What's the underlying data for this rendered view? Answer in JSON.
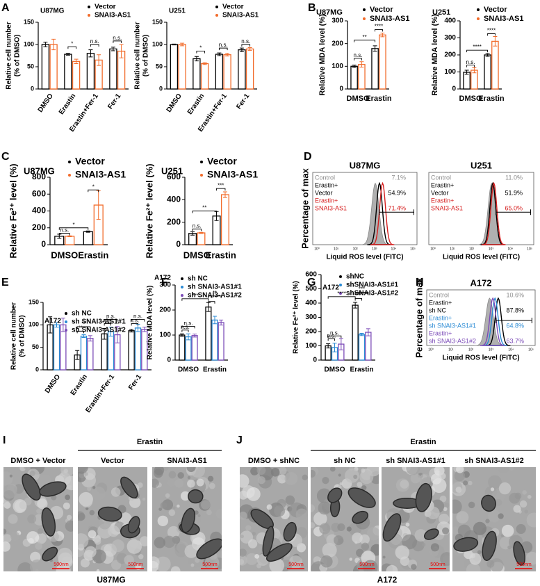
{
  "panel_labels": [
    "A",
    "B",
    "C",
    "D",
    "E",
    "F",
    "G",
    "H",
    "I",
    "J"
  ],
  "chart_data": [
    {
      "type": "bar",
      "title": "U87MG",
      "ylabel": [
        "Relative cell number",
        "(% of DMSO)"
      ],
      "categories": [
        "DMSO",
        "Erastin",
        "Erastin+Fer-1",
        "Fer-1"
      ],
      "series": [
        {
          "name": "Vector",
          "color": "#000000",
          "values": [
            100,
            78,
            80,
            90
          ],
          "errors": [
            5,
            2,
            8,
            4
          ]
        },
        {
          "name": "SNAI3-AS1",
          "color": "#f26b2a",
          "values": [
            100,
            62,
            65,
            85
          ],
          "errors": [
            12,
            5,
            12,
            15
          ]
        }
      ],
      "ylim": [
        0,
        150
      ],
      "yticks": [
        0,
        50,
        100,
        150
      ],
      "annotations": [
        "*",
        "n.s.",
        "n.s."
      ]
    },
    {
      "type": "bar",
      "title": "U251",
      "ylabel": [
        "Relative cell number",
        "(% of DMSO)"
      ],
      "categories": [
        "DMSO",
        "Erastin",
        "Erastin+Fer-1",
        "Fer-1"
      ],
      "series": [
        {
          "name": "Vector",
          "color": "#000000",
          "values": [
            100,
            68,
            78,
            88
          ],
          "errors": [
            1,
            5,
            3,
            4
          ]
        },
        {
          "name": "SNAI3-AS1",
          "color": "#f26b2a",
          "values": [
            100,
            57,
            77,
            90
          ],
          "errors": [
            3,
            2,
            3,
            3
          ]
        }
      ],
      "ylim": [
        0,
        150
      ],
      "yticks": [
        0,
        50,
        100,
        150
      ],
      "annotations": [
        "*",
        "n.s.",
        "n.s."
      ]
    },
    {
      "type": "bar",
      "title": "U87MG",
      "ylabel": [
        "Relative MDA level (%)"
      ],
      "categories": [
        "DMSO",
        "Erastin"
      ],
      "series": [
        {
          "name": "Vector",
          "color": "#000000",
          "values": [
            100,
            178
          ],
          "errors": [
            5,
            12
          ]
        },
        {
          "name": "SNAI3-AS1",
          "color": "#f26b2a",
          "values": [
            108,
            238
          ],
          "errors": [
            12,
            8
          ]
        }
      ],
      "ylim": [
        0,
        300
      ],
      "yticks": [
        0,
        100,
        200,
        300
      ],
      "annotations": [
        "n.s.",
        "**",
        "****"
      ]
    },
    {
      "type": "bar",
      "title": "U251",
      "ylabel": [
        "Relative MDA level (%)"
      ],
      "categories": [
        "DMSO",
        "Erastin"
      ],
      "series": [
        {
          "name": "Vector",
          "color": "#000000",
          "values": [
            98,
            200
          ],
          "errors": [
            12,
            8
          ]
        },
        {
          "name": "SNAI3-AS1",
          "color": "#f26b2a",
          "values": [
            110,
            280
          ],
          "errors": [
            15,
            28
          ]
        }
      ],
      "ylim": [
        0,
        400
      ],
      "yticks": [
        0,
        100,
        200,
        300,
        400
      ],
      "annotations": [
        "n.s.",
        "****",
        "****"
      ]
    },
    {
      "type": "bar",
      "title": "U87MG",
      "ylabel": [
        "Relative Fe²⁺ level (%)"
      ],
      "categories": [
        "DMSO",
        "Erastin"
      ],
      "series": [
        {
          "name": "Vector",
          "color": "#000000",
          "values": [
            100,
            155
          ],
          "errors": [
            25,
            8
          ]
        },
        {
          "name": "SNAI3-AS1",
          "color": "#f26b2a",
          "values": [
            100,
            470
          ],
          "errors": [
            5,
            170
          ]
        }
      ],
      "ylim": [
        0,
        800
      ],
      "yticks": [
        0,
        200,
        400,
        600,
        800
      ],
      "annotations": [
        "n.s.",
        "*",
        "*"
      ]
    },
    {
      "type": "bar",
      "title": "U251",
      "ylabel": [
        "Relative Fe²⁺ level (%)"
      ],
      "categories": [
        "DMSO",
        "Erastin"
      ],
      "series": [
        {
          "name": "Vector",
          "color": "#000000",
          "values": [
            100,
            255
          ],
          "errors": [
            15,
            40
          ]
        },
        {
          "name": "SNAI3-AS1",
          "color": "#f26b2a",
          "values": [
            105,
            445
          ],
          "errors": [
            5,
            25
          ]
        }
      ],
      "ylim": [
        0,
        600
      ],
      "yticks": [
        0,
        200,
        400,
        600
      ],
      "annotations": [
        "n.s.",
        "**",
        "***"
      ]
    },
    {
      "type": "bar",
      "title": "A172",
      "ylabel": [
        "Relative cell number",
        "(% of DMSO)"
      ],
      "categories": [
        "DMSO",
        "Erastin",
        "Erastin+Fer-1",
        "Fer-1"
      ],
      "series": [
        {
          "name": "sh NC",
          "color": "#000000",
          "values": [
            100,
            33,
            80,
            87
          ],
          "errors": [
            18,
            10,
            12,
            3
          ]
        },
        {
          "name": "sh SNAI3-AS1#1",
          "color": "#2a8ad4",
          "values": [
            100,
            75,
            85,
            93
          ],
          "errors": [
            5,
            3,
            10,
            8
          ]
        },
        {
          "name": "sh SNAI3-AS1#2",
          "color": "#7b4bb7",
          "values": [
            100,
            70,
            78,
            90
          ],
          "errors": [
            15,
            6,
            18,
            5
          ]
        }
      ],
      "ylim": [
        0,
        150
      ],
      "yticks": [
        0,
        50,
        100,
        150
      ],
      "annotations": [
        "**",
        "**",
        "n.s.",
        "n.s.",
        "n.s.",
        "n.s."
      ]
    },
    {
      "type": "bar",
      "title": "A172",
      "ylabel": [
        "Relative MDA level (%)"
      ],
      "categories": [
        "DMSO",
        "Erastin"
      ],
      "series": [
        {
          "name": "sh NC",
          "color": "#000000",
          "values": [
            100,
            212
          ],
          "errors": [
            5,
            18
          ]
        },
        {
          "name": "sh SNAI3-AS1#1",
          "color": "#2a8ad4",
          "values": [
            93,
            160
          ],
          "errors": [
            12,
            15
          ]
        },
        {
          "name": "sh SNAI3-AS1#2",
          "color": "#7b4bb7",
          "values": [
            98,
            150
          ],
          "errors": [
            6,
            10
          ]
        }
      ],
      "ylim": [
        0,
        300
      ],
      "yticks": [
        0,
        100,
        200,
        300
      ],
      "annotations": [
        "n.s.",
        "n.s.",
        "***",
        "**",
        "*"
      ]
    },
    {
      "type": "bar",
      "title": "A172",
      "ylabel": [
        "Relative Fe²⁺ level (%)"
      ],
      "categories": [
        "DMSO",
        "Erastin"
      ],
      "series": [
        {
          "name": "shNC",
          "color": "#000000",
          "values": [
            100,
            385
          ],
          "errors": [
            15,
            20
          ]
        },
        {
          "name": "shSNAI3-AS1#1",
          "color": "#2a8ad4",
          "values": [
            88,
            180
          ],
          "errors": [
            30,
            8
          ]
        },
        {
          "name": "shSNAI3-AS1#2",
          "color": "#7b4bb7",
          "values": [
            112,
            195
          ],
          "errors": [
            40,
            25
          ]
        }
      ],
      "ylim": [
        0,
        600
      ],
      "yticks": [
        0,
        100,
        200,
        300,
        400,
        500,
        600
      ],
      "annotations": [
        "n.s.",
        "n.s.",
        "****",
        "***",
        "***"
      ]
    }
  ],
  "flow_panels": [
    {
      "title": "U87MG",
      "ylabel": "Percentage of max",
      "xlabel": "Liquid ROS level (FITC)",
      "xticks": [
        "10⁰",
        "10¹",
        "10²",
        "10³",
        "10⁴",
        "10⁵"
      ],
      "entries": [
        {
          "label": [
            "Control"
          ],
          "value": "7.1%",
          "color": "#8c8c8c"
        },
        {
          "label": [
            "Erastin+",
            "Vector"
          ],
          "value": "54.9%",
          "color": "#000000"
        },
        {
          "label": [
            "Erastin+",
            "SNAI3-AS1"
          ],
          "value": "71.4%",
          "color": "#d62020"
        }
      ]
    },
    {
      "title": "U251",
      "xlabel": "Liquid ROS level (FITC)",
      "xticks": [
        "10⁰",
        "10¹",
        "10²",
        "10³",
        "10⁴",
        "10⁵"
      ],
      "entries": [
        {
          "label": [
            "Control"
          ],
          "value": "11.0%",
          "color": "#8c8c8c"
        },
        {
          "label": [
            "Erastin+",
            "Vector"
          ],
          "value": "51.9%",
          "color": "#000000"
        },
        {
          "label": [
            "Erastin+",
            "SNAI3-AS1"
          ],
          "value": "65.0%",
          "color": "#d62020"
        }
      ]
    },
    {
      "title": "A172",
      "ylabel": "Percentage of max",
      "xlabel": "Liquid ROS level (FITC)",
      "xticks": [
        "10⁰",
        "10¹",
        "10²",
        "10³",
        "10⁴",
        "10⁵"
      ],
      "entries": [
        {
          "label": [
            "Control"
          ],
          "value": "10.6%",
          "color": "#8c8c8c"
        },
        {
          "label": [
            "Erastin+",
            "sh NC"
          ],
          "value": "87.8%",
          "color": "#000000"
        },
        {
          "label": [
            "Erastin+",
            "sh SNAI3-AS1#1"
          ],
          "value": "64.8%",
          "color": "#2a8ad4"
        },
        {
          "label": [
            "Erastin+",
            "sh SNAI3-AS1#2"
          ],
          "value": "63.7%",
          "color": "#7b4bb7"
        }
      ]
    }
  ],
  "tem_panels": [
    {
      "group": "Erastin",
      "cell": "U87MG",
      "images": [
        "DMSO + Vector",
        "Vector",
        "SNAI3-AS1"
      ],
      "scale": "500nm"
    },
    {
      "group": "Erastin",
      "cell": "A172",
      "images": [
        "DMSO + shNC",
        "sh NC",
        "sh SNAI3-AS1#1",
        "sh SNAI3-AS1#2"
      ],
      "scale": "500nm"
    }
  ]
}
